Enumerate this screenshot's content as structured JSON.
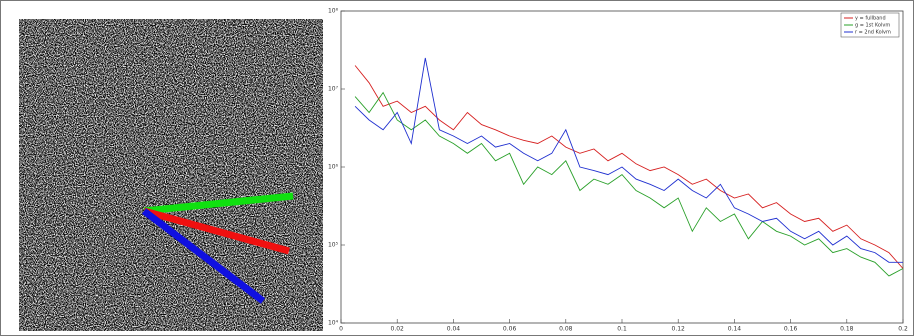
{
  "chart_data": {
    "type": "line",
    "x": [
      0.005,
      0.01,
      0.015,
      0.02,
      0.025,
      0.03,
      0.035,
      0.04,
      0.045,
      0.05,
      0.055,
      0.06,
      0.065,
      0.07,
      0.075,
      0.08,
      0.085,
      0.09,
      0.095,
      0.1,
      0.105,
      0.11,
      0.115,
      0.12,
      0.125,
      0.13,
      0.135,
      0.14,
      0.145,
      0.15,
      0.155,
      0.16,
      0.165,
      0.17,
      0.175,
      0.18,
      0.185,
      0.19,
      0.195,
      0.2
    ],
    "series": [
      {
        "name": "y = fullband",
        "color": "#d62020",
        "values": [
          20000000,
          12000000,
          6000000,
          7000000,
          5000000,
          6000000,
          4000000,
          3000000,
          5000000,
          3500000,
          3000000,
          2500000,
          2200000,
          2000000,
          2500000,
          1800000,
          1500000,
          1700000,
          1200000,
          1500000,
          1100000,
          900000,
          1000000,
          800000,
          600000,
          700000,
          500000,
          400000,
          450000,
          300000,
          350000,
          250000,
          200000,
          220000,
          150000,
          180000,
          120000,
          100000,
          80000,
          50000
        ]
      },
      {
        "name": "g = 1st Kolvm",
        "color": "#2aa02a",
        "values": [
          8000000,
          5000000,
          9000000,
          4000000,
          3000000,
          4000000,
          2500000,
          2000000,
          1500000,
          2000000,
          1200000,
          1500000,
          600000,
          1000000,
          800000,
          1200000,
          500000,
          700000,
          600000,
          800000,
          500000,
          400000,
          300000,
          400000,
          150000,
          300000,
          200000,
          250000,
          120000,
          200000,
          150000,
          130000,
          100000,
          120000,
          80000,
          90000,
          70000,
          60000,
          40000,
          50000
        ]
      },
      {
        "name": "r = 2nd Kolvm",
        "color": "#2030d0",
        "values": [
          6000000,
          4000000,
          3000000,
          5000000,
          2000000,
          25000000,
          3000000,
          2500000,
          2000000,
          2500000,
          1800000,
          2000000,
          1500000,
          1200000,
          1500000,
          3000000,
          1000000,
          900000,
          800000,
          1000000,
          700000,
          600000,
          500000,
          700000,
          500000,
          400000,
          600000,
          300000,
          250000,
          200000,
          220000,
          150000,
          120000,
          150000,
          100000,
          130000,
          90000,
          80000,
          60000,
          60000
        ]
      }
    ],
    "xlim": [
      0,
      0.2
    ],
    "xticks": [
      0,
      0.02,
      0.04,
      0.06,
      0.08,
      0.1,
      0.12,
      0.14,
      0.16,
      0.18,
      0.2
    ],
    "ylim": [
      10000,
      100000000
    ],
    "log_y": true,
    "yticks": [
      {
        "value": 10000,
        "label": "10⁴"
      },
      {
        "value": 100000,
        "label": "10⁵"
      },
      {
        "value": 1000000,
        "label": "10⁶"
      },
      {
        "value": 10000000,
        "label": "10⁷"
      },
      {
        "value": 100000000,
        "label": "10⁸"
      }
    ],
    "grid": false,
    "legend": "top-right"
  }
}
